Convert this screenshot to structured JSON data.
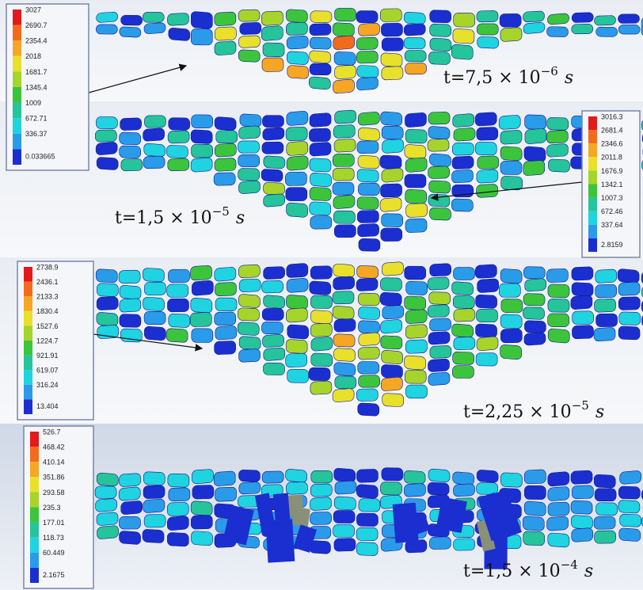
{
  "panels": [
    {
      "time": {
        "base": "t=7,5 × 10",
        "exponent": "−6",
        "unit": "s"
      },
      "legend": [
        "3027",
        "2690.7",
        "2354.4",
        "2018",
        "1681.7",
        "1345.4",
        "1009",
        "672.71",
        "336.37",
        "0.033665"
      ]
    },
    {
      "time": {
        "base": "t=1,5 × 10",
        "exponent": "−5",
        "unit": "s"
      },
      "legend": [
        "3016.3",
        "2681.4",
        "2346.6",
        "2011.8",
        "1676.9",
        "1342.1",
        "1007.3",
        "672.46",
        "337.64",
        "2.8159"
      ]
    },
    {
      "time": {
        "base": "t=2,25 × 10",
        "exponent": "−5",
        "unit": "s"
      },
      "legend": [
        "2738.9",
        "2436.1",
        "2133.3",
        "1830.4",
        "1527.6",
        "1224.7",
        "921.91",
        "619.07",
        "316.24",
        "13.404"
      ]
    },
    {
      "time": {
        "base": "t=1,5 × 10",
        "exponent": "−4",
        "unit": "s"
      },
      "legend": [
        "526.7",
        "468.42",
        "410.14",
        "351.86",
        "293.58",
        "235.3",
        "177.01",
        "118.73",
        "60.449",
        "2.1675"
      ]
    }
  ]
}
